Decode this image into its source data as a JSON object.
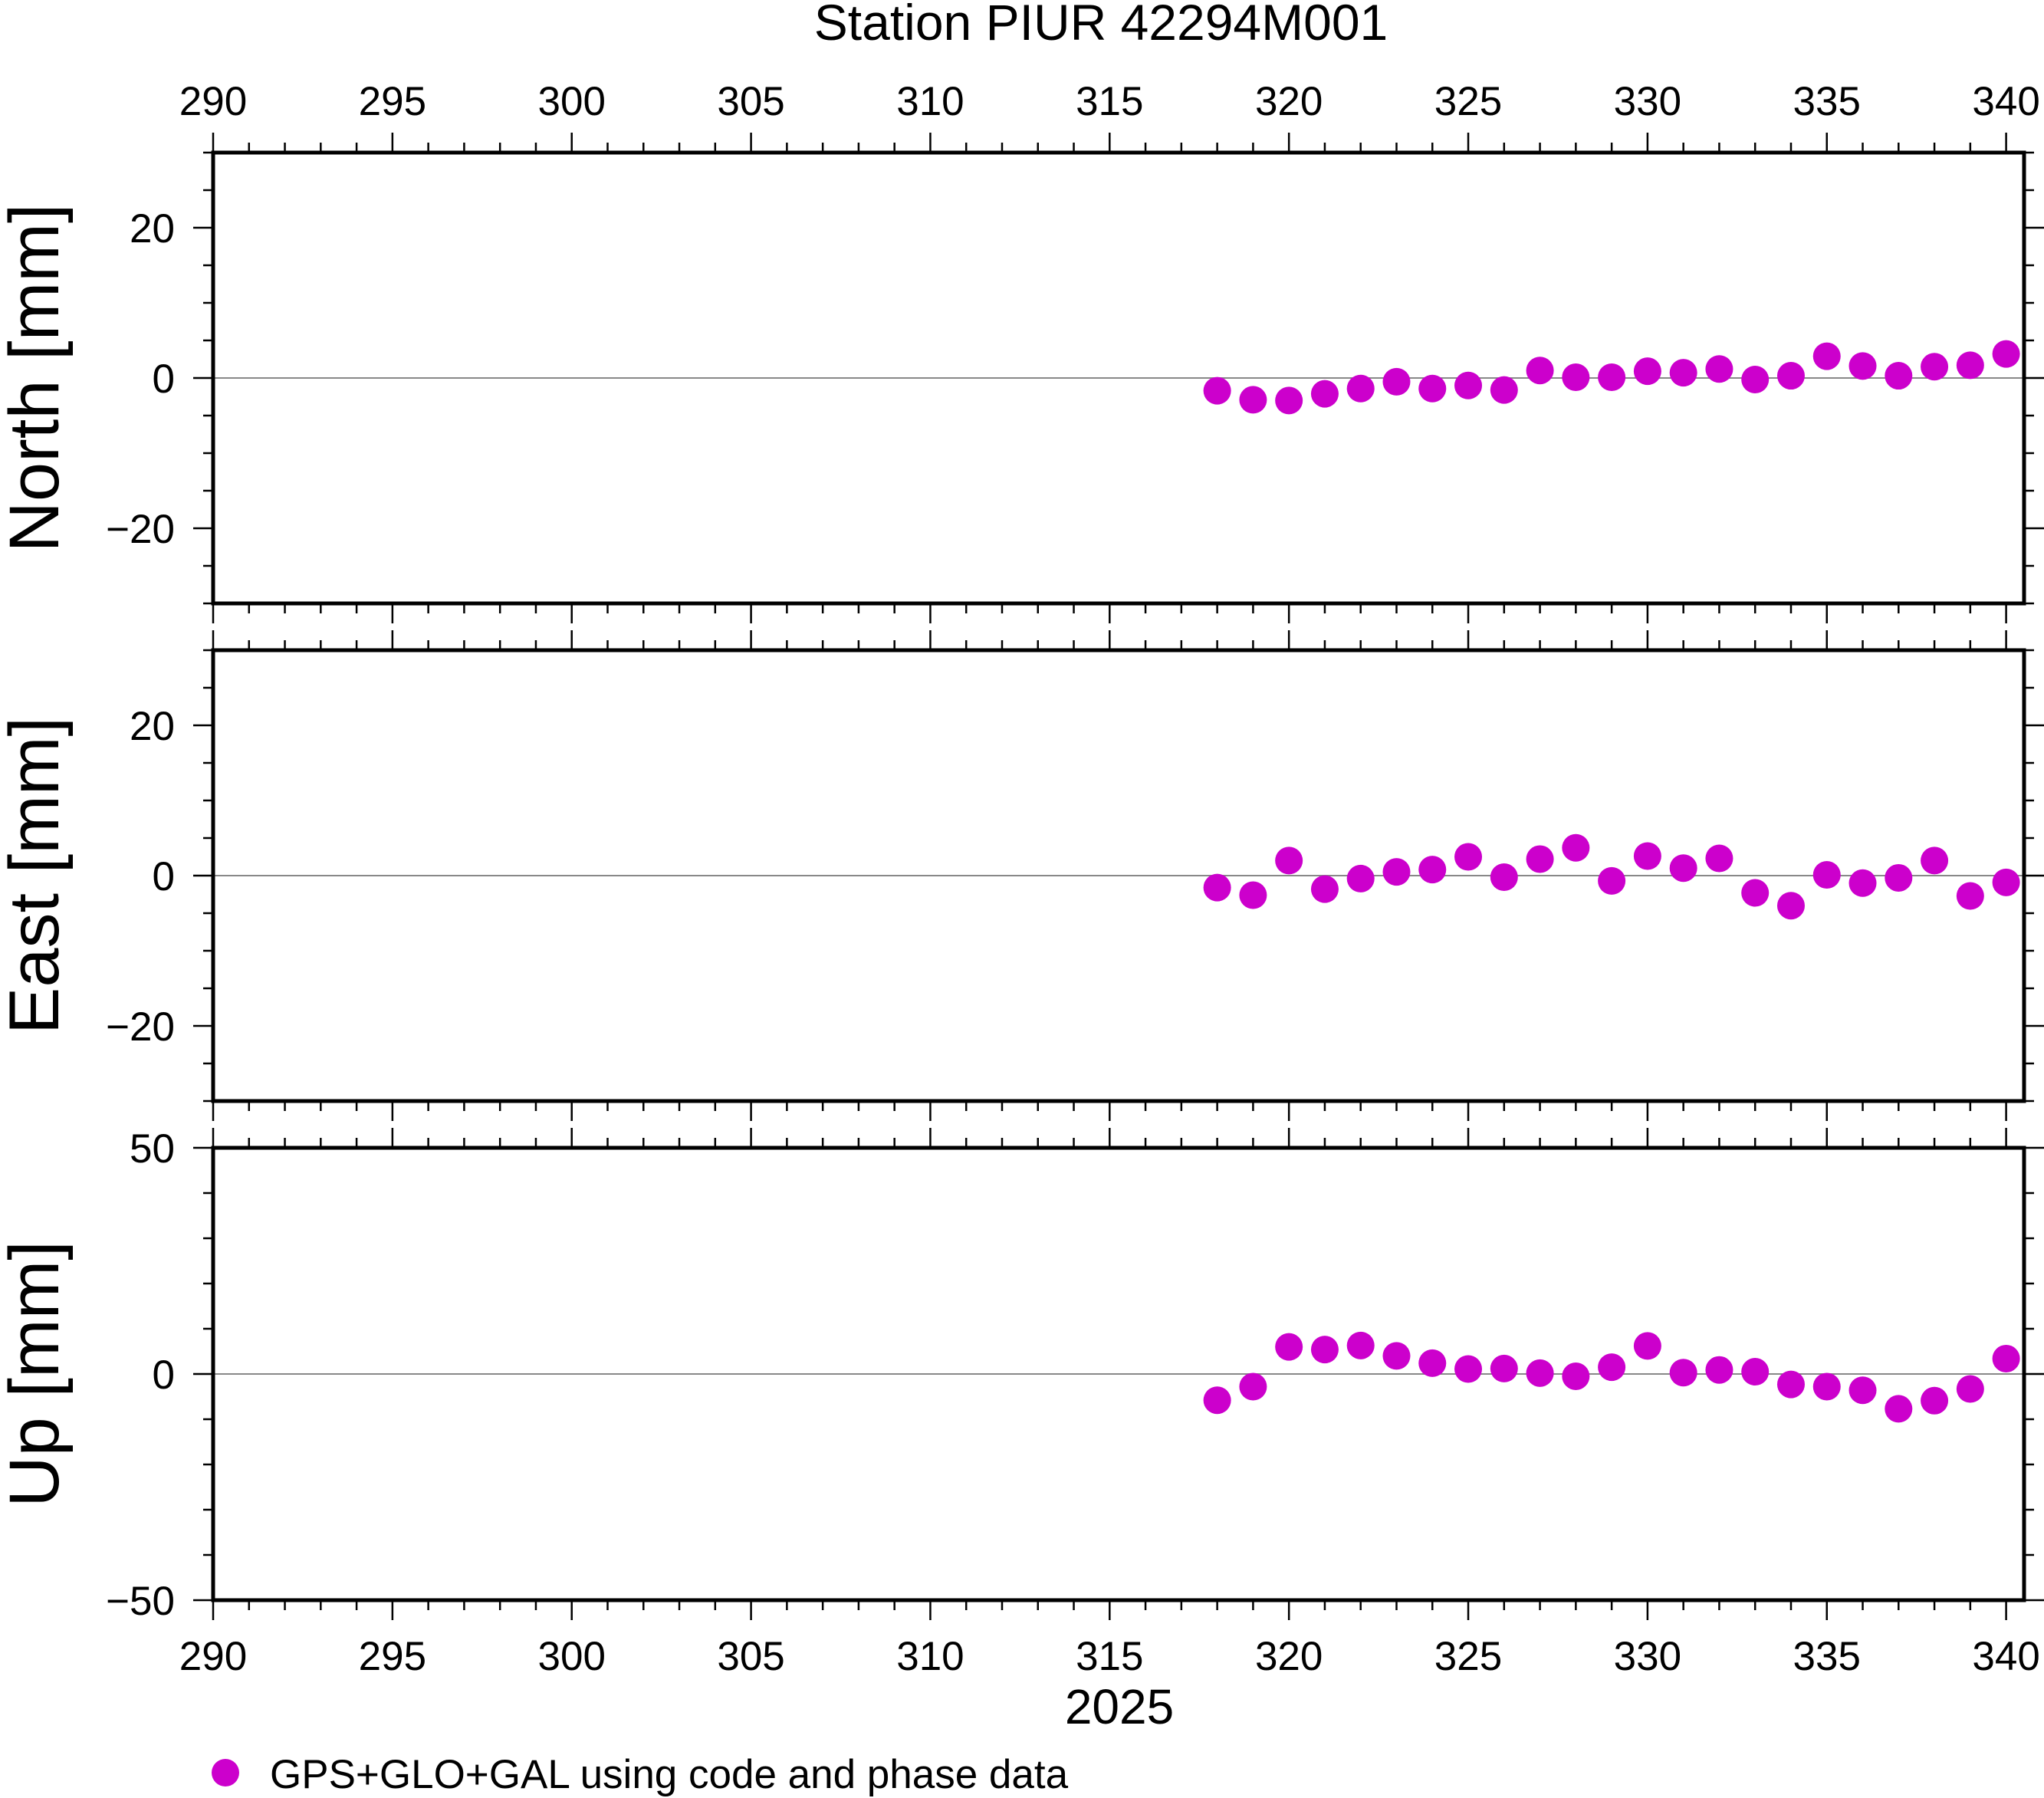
{
  "title": "Station PIUR 42294M001",
  "year_label": "2025",
  "legend": {
    "label": "GPS+GLO+GAL using code and phase data",
    "color": "#cc00cc"
  },
  "chart_data": [
    {
      "type": "scatter",
      "panel": "north",
      "ylabel": "North [mm]",
      "xlim": [
        290,
        340.5
      ],
      "ylim": [
        -30,
        30
      ],
      "x_ticks": [
        290,
        295,
        300,
        305,
        310,
        315,
        320,
        325,
        330,
        335,
        340
      ],
      "y_ticks": [
        -20,
        0,
        20
      ],
      "series": [
        {
          "name": "GPS+GLO+GAL using code and phase data",
          "color": "#cc00cc",
          "x": [
            318,
            319,
            320,
            321,
            322,
            323,
            324,
            325,
            326,
            327,
            328,
            329,
            330,
            331,
            332,
            333,
            334,
            335,
            336,
            337,
            338,
            339,
            340
          ],
          "y": [
            -1.7,
            -2.9,
            -3.0,
            -2.1,
            -1.4,
            -0.5,
            -1.4,
            -1.0,
            -1.6,
            1.0,
            0.1,
            0.1,
            0.9,
            0.7,
            1.2,
            -0.2,
            0.3,
            2.9,
            1.6,
            0.3,
            1.5,
            1.7,
            3.2
          ]
        }
      ]
    },
    {
      "type": "scatter",
      "panel": "east",
      "ylabel": "East [mm]",
      "xlim": [
        290,
        340.5
      ],
      "ylim": [
        -30,
        30
      ],
      "x_ticks": [
        290,
        295,
        300,
        305,
        310,
        315,
        320,
        325,
        330,
        335,
        340
      ],
      "y_ticks": [
        -20,
        0,
        20
      ],
      "series": [
        {
          "name": "GPS+GLO+GAL using code and phase data",
          "color": "#cc00cc",
          "x": [
            318,
            319,
            320,
            321,
            322,
            323,
            324,
            325,
            326,
            327,
            328,
            329,
            330,
            331,
            332,
            333,
            334,
            335,
            336,
            337,
            338,
            339,
            340
          ],
          "y": [
            -1.6,
            -2.6,
            2.0,
            -1.8,
            -0.4,
            0.5,
            0.8,
            2.5,
            -0.2,
            2.2,
            3.7,
            -0.7,
            2.6,
            1.0,
            2.3,
            -2.3,
            -4.0,
            0.1,
            -1.0,
            -0.3,
            2.0,
            -2.7,
            -0.9
          ]
        }
      ]
    },
    {
      "type": "scatter",
      "panel": "up",
      "ylabel": "Up [mm]",
      "xlim": [
        290,
        340.5
      ],
      "ylim": [
        -50,
        50
      ],
      "x_ticks": [
        290,
        295,
        300,
        305,
        310,
        315,
        320,
        325,
        330,
        335,
        340
      ],
      "y_ticks": [
        -50,
        0,
        50
      ],
      "series": [
        {
          "name": "GPS+GLO+GAL using code and phase data",
          "color": "#cc00cc",
          "x": [
            318,
            319,
            320,
            321,
            322,
            323,
            324,
            325,
            326,
            327,
            328,
            329,
            330,
            331,
            332,
            333,
            334,
            335,
            336,
            337,
            338,
            339,
            340
          ],
          "y": [
            -5.8,
            -2.8,
            6.0,
            5.4,
            6.3,
            4.0,
            2.4,
            1.1,
            1.2,
            0.2,
            -0.5,
            1.5,
            6.2,
            0.3,
            0.9,
            0.5,
            -2.3,
            -2.8,
            -3.6,
            -7.7,
            -5.9,
            -3.3,
            3.4
          ]
        }
      ]
    }
  ]
}
